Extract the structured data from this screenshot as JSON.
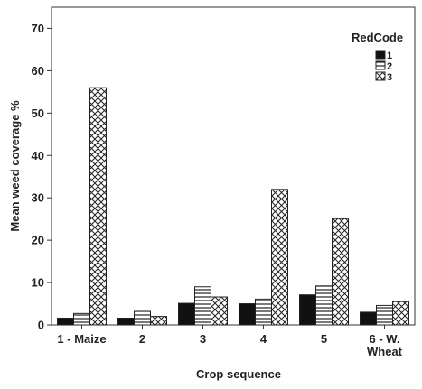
{
  "chart_data": {
    "type": "bar",
    "title": "",
    "xlabel": "Crop sequence",
    "ylabel": "Mean weed coverage %",
    "ylim": [
      0,
      75
    ],
    "yticks": [
      0,
      10,
      20,
      30,
      40,
      50,
      60,
      70
    ],
    "grid": false,
    "legend": {
      "title": "RedCode",
      "placement": "top-right"
    },
    "categories": [
      [
        "1 - Maize"
      ],
      [
        "2"
      ],
      [
        "3"
      ],
      [
        "4"
      ],
      [
        "5"
      ],
      [
        "6 - W.",
        "Wheat"
      ]
    ],
    "series": [
      {
        "name": "1",
        "pattern": "solid",
        "color": "#111111",
        "values": [
          1.6,
          1.6,
          5.1,
          5.0,
          7.1,
          3.0
        ]
      },
      {
        "name": "2",
        "pattern": "horizontal-lines",
        "color": "#222222",
        "values": [
          2.7,
          3.2,
          9.0,
          6.1,
          9.2,
          4.6
        ]
      },
      {
        "name": "3",
        "pattern": "crosshatch",
        "color": "#222222",
        "values": [
          56.0,
          2.0,
          6.6,
          32.0,
          25.1,
          5.5
        ]
      }
    ]
  }
}
